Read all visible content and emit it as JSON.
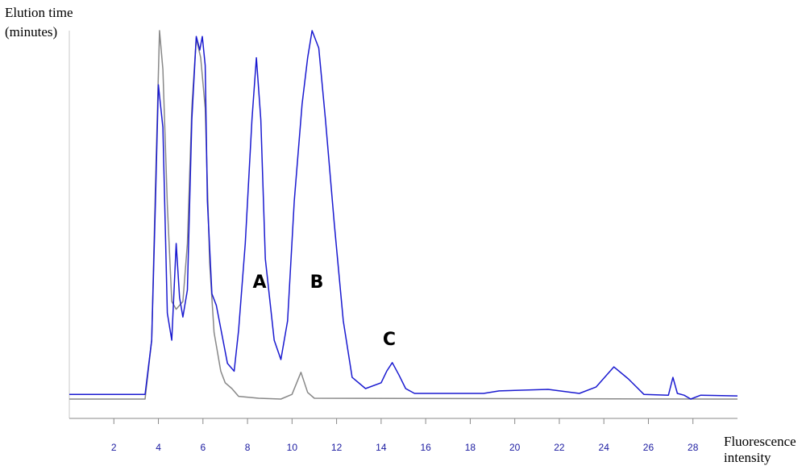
{
  "chart_data": {
    "type": "line",
    "y_label": [
      "Elution time",
      "(minutes)"
    ],
    "x_label": [
      "Fluorescence",
      "intensity"
    ],
    "annotations": [
      "A",
      "B",
      "C"
    ],
    "xlim": [
      0,
      30
    ],
    "ylim": [
      0,
      100
    ],
    "xticks": [
      2,
      4,
      6,
      8,
      10,
      12,
      14,
      16,
      18,
      20,
      22,
      24,
      26,
      28
    ],
    "series": [
      {
        "color": "#888888",
        "x": [
          0,
          3.4,
          3.7,
          3.87,
          4.05,
          4.2,
          4.4,
          4.6,
          4.8,
          5.1,
          5.3,
          5.5,
          5.7,
          5.9,
          6.1,
          6.3,
          6.5,
          6.8,
          7.0,
          7.3,
          7.6,
          8.5,
          9.5,
          10.0,
          10.4,
          10.7,
          11.0,
          30
        ],
        "values": [
          4.8,
          4.8,
          20,
          60,
          100,
          90,
          55,
          30,
          28,
          30,
          45,
          80,
          98,
          93,
          80,
          40,
          22,
          12,
          9,
          7.5,
          5.5,
          5,
          4.8,
          6,
          11.7,
          6.5,
          5,
          4.8
        ]
      },
      {
        "color": "#1a1ad0",
        "x": [
          0,
          3.4,
          3.7,
          3.87,
          4.0,
          4.2,
          4.4,
          4.6,
          4.8,
          4.95,
          5.1,
          5.3,
          5.5,
          5.7,
          5.86,
          5.97,
          6.1,
          6.2,
          6.4,
          6.6,
          6.9,
          7.1,
          7.4,
          7.6,
          7.9,
          8.2,
          8.4,
          8.6,
          8.8,
          9.2,
          9.5,
          9.8,
          10.1,
          10.45,
          10.7,
          10.9,
          11.2,
          11.5,
          11.9,
          12.3,
          12.7,
          13.3,
          14.0,
          14.25,
          14.5,
          14.8,
          15.1,
          15.5,
          18.6,
          19.3,
          21.5,
          22.9,
          23.65,
          24.45,
          25.1,
          25.8,
          26.9,
          27.1,
          27.3,
          27.6,
          27.9,
          28.35,
          30
        ],
        "values": [
          6,
          6,
          20,
          56,
          86,
          75,
          27,
          20,
          45,
          31,
          26,
          33,
          77,
          98.5,
          95,
          98.5,
          91,
          56,
          32,
          29,
          20,
          14,
          12,
          22.5,
          45,
          77,
          93,
          77,
          41,
          20,
          15,
          25,
          56,
          81,
          93,
          100,
          95.5,
          77,
          50,
          25,
          10.4,
          7.5,
          9,
          12,
          14.2,
          11,
          7.5,
          6.25,
          6.25,
          6.9,
          7.3,
          6.25,
          7.9,
          13.1,
          10,
          6,
          5.8,
          10.4,
          6.25,
          5.8,
          4.8,
          5.8,
          5.6
        ]
      }
    ]
  }
}
